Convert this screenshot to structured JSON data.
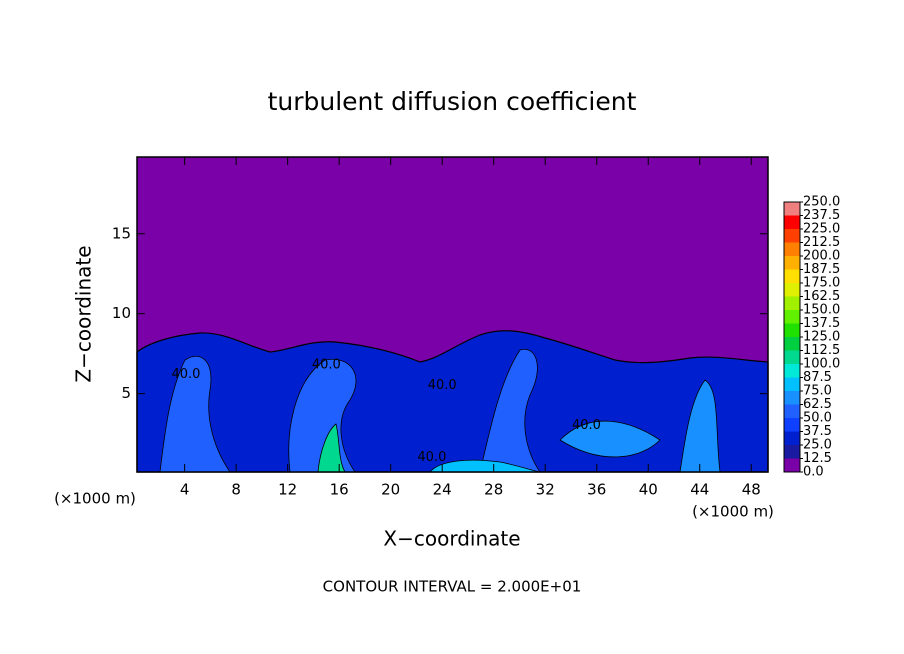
{
  "chart_data": {
    "type": "contour",
    "title": "turbulent diffusion coefficient",
    "x_label": "X−coordinate",
    "y_label": "Z−coordinate",
    "x_unit_labels": [
      "(×1000 m)",
      "(×1000 m)"
    ],
    "footer": "CONTOUR INTERVAL = 2.000E+01",
    "xlim": [
      0.3,
      49.3
    ],
    "ylim": [
      0.1,
      19.8
    ],
    "xticks": [
      4,
      8,
      12,
      16,
      20,
      24,
      28,
      32,
      36,
      40,
      44,
      48
    ],
    "yticks": [
      5,
      10,
      15
    ],
    "contour_labels": [
      {
        "text": "40.0",
        "x": 4.1,
        "y": 6.2
      },
      {
        "text": "40.0",
        "x": 15.0,
        "y": 6.8
      },
      {
        "text": "40.0",
        "x": 24.0,
        "y": 5.5
      },
      {
        "text": "40.0",
        "x": 23.2,
        "y": 1.0
      },
      {
        "text": "40.0",
        "x": 35.2,
        "y": 3.0
      }
    ],
    "colorbar": {
      "levels": [
        {
          "value": 0,
          "label": "0.0"
        },
        {
          "value": 12.5,
          "label": "12.5"
        },
        {
          "value": 25,
          "label": "25.0"
        },
        {
          "value": 37.5,
          "label": "37.5"
        },
        {
          "value": 50,
          "label": "50.0"
        },
        {
          "value": 62.5,
          "label": "62.5"
        },
        {
          "value": 75,
          "label": "75.0"
        },
        {
          "value": 87.5,
          "label": "87.5"
        },
        {
          "value": 100,
          "label": "100.0"
        },
        {
          "value": 112.5,
          "label": "112.5"
        },
        {
          "value": 125,
          "label": "125.0"
        },
        {
          "value": 137.5,
          "label": "137.5"
        },
        {
          "value": 150,
          "label": "150.0"
        },
        {
          "value": 162.5,
          "label": "162.5"
        },
        {
          "value": 175,
          "label": "175.0"
        },
        {
          "value": 187.5,
          "label": "187.5"
        },
        {
          "value": 200,
          "label": "200.0"
        },
        {
          "value": 212.5,
          "label": "212.5"
        },
        {
          "value": 225,
          "label": "225.0"
        },
        {
          "value": 237.5,
          "label": "237.5"
        },
        {
          "value": 250,
          "label": "250.0"
        }
      ],
      "colors": [
        "#7a00a8",
        "#1a1aa0",
        "#0020d0",
        "#1040ff",
        "#2060ff",
        "#1890ff",
        "#00c0ff",
        "#00e8d8",
        "#00d890",
        "#00d040",
        "#20e000",
        "#60f000",
        "#a0f000",
        "#e0f000",
        "#ffe000",
        "#ffb000",
        "#ff8000",
        "#ff4000",
        "#ff0000",
        "#f08080"
      ]
    }
  }
}
